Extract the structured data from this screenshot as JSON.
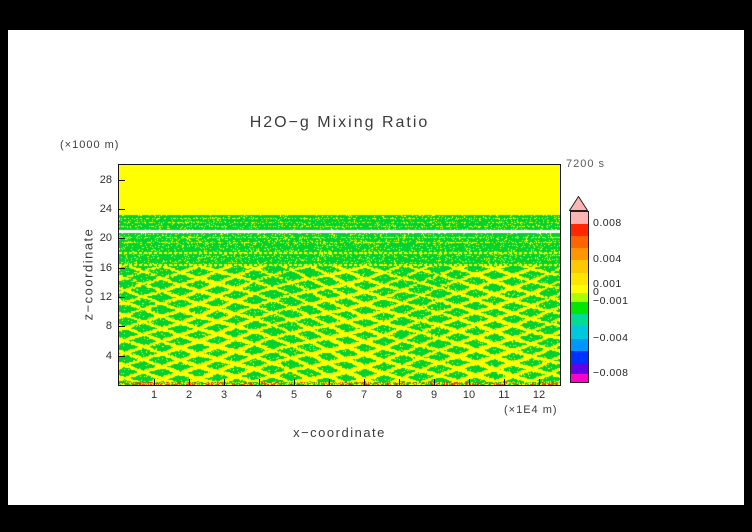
{
  "window": {
    "border_color": "#000000",
    "paper_color": "#ffffff"
  },
  "chart_data": {
    "type": "heatmap",
    "title": "H2O−g Mixing Ratio",
    "time_label": "7200 s",
    "grid": false,
    "x_axis": {
      "label": "x−coordinate",
      "unit": "(×1E4 m)",
      "ticks": [
        1,
        2,
        3,
        4,
        5,
        6,
        7,
        8,
        9,
        10,
        11,
        12
      ],
      "range": [
        0,
        12.6
      ]
    },
    "z_axis": {
      "label": "z−coordinate",
      "unit": "(×1000 m)",
      "ticks": [
        4,
        8,
        12,
        16,
        20,
        24,
        28
      ],
      "range": [
        0,
        30
      ]
    },
    "colorbar": {
      "position": "right",
      "overflow_pointer_color": "#ffb4b4",
      "segments": [
        {
          "color": "#ffb4b4",
          "h": 12
        },
        {
          "color": "#ff2800",
          "h": 12
        },
        {
          "color": "#ff6400",
          "h": 12
        },
        {
          "color": "#ff9600",
          "h": 12
        },
        {
          "color": "#ffc800",
          "h": 13
        },
        {
          "color": "#ffe600",
          "h": 12
        },
        {
          "color": "#ffff00",
          "h": 8
        },
        {
          "color": "#aaff00",
          "h": 9
        },
        {
          "color": "#00e600",
          "h": 12
        },
        {
          "color": "#00dc96",
          "h": 12
        },
        {
          "color": "#00c8dc",
          "h": 13
        },
        {
          "color": "#0096ff",
          "h": 12
        },
        {
          "color": "#0032ff",
          "h": 12
        },
        {
          "color": "#6400e6",
          "h": 11
        },
        {
          "color": "#ff00c8",
          "h": 8
        }
      ],
      "labels": [
        {
          "text": "0.008",
          "offset": 12
        },
        {
          "text": "0.004",
          "offset": 48
        },
        {
          "text": "0.001",
          "offset": 73
        },
        {
          "text": "0",
          "offset": 81
        },
        {
          "text": "−0.001",
          "offset": 90
        },
        {
          "text": "−0.004",
          "offset": 127
        },
        {
          "text": "−0.008",
          "offset": 162
        }
      ]
    },
    "field": {
      "colors": {
        "yellow": "#ffff00",
        "green": "#00d232",
        "white_stripe": "#ffffff",
        "red_speck": "#ff1e00"
      },
      "regions": [
        {
          "z_range": [
            23.3,
            30
          ],
          "value_band": "0 to 0.001",
          "appearance": "uniform yellow"
        },
        {
          "z_range": [
            21.2,
            23.3
          ],
          "value_band": "−0.001 to 0",
          "appearance": "green band with fine yellow dotted rows"
        },
        {
          "z_range": [
            20.75,
            21.2
          ],
          "value_band": "near zero",
          "appearance": "thin pale white stripe"
        },
        {
          "z_range": [
            16.3,
            20.75
          ],
          "value_band": "−0.001 to 0.001",
          "appearance": "green with sparse yellow speckle and dotted horizontal lines"
        },
        {
          "z_range": [
            0.45,
            16.3
          ],
          "value_band": "−0.001 to 0.001",
          "appearance": "green with yellow chevron gravity-wave interference pattern, denser toward bottom"
        },
        {
          "z_range": [
            0,
            0.45
          ],
          "value_band": "up to ≥0.008",
          "appearance": "yellow/green mix with scattered red specks along the ground"
        }
      ]
    }
  }
}
